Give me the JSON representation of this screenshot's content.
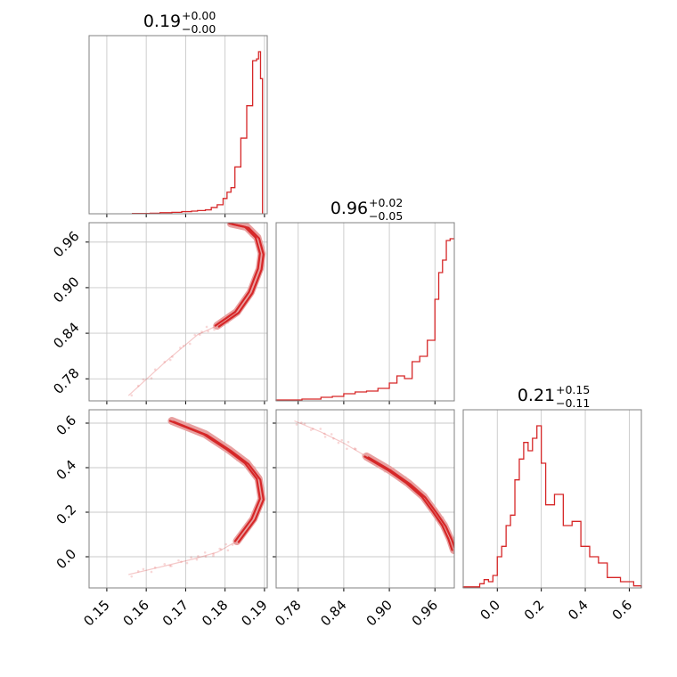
{
  "colors": {
    "accent": "#d62728",
    "grid": "#c8c8c8",
    "frame": "#808080"
  },
  "chart_data": [
    {
      "type": "histogram",
      "panel": "p1-marginal",
      "title": {
        "main": "0.19",
        "sup": "+0.00",
        "sub": "−0.00"
      },
      "xlim": [
        0.1455,
        0.1907
      ],
      "xticks": [
        0.15,
        0.16,
        0.17,
        0.18,
        0.19
      ],
      "bins": [
        [
          0.1565,
          0.002
        ],
        [
          0.161,
          0.003
        ],
        [
          0.1635,
          0.006
        ],
        [
          0.1665,
          0.008
        ],
        [
          0.169,
          0.012
        ],
        [
          0.1715,
          0.015
        ],
        [
          0.173,
          0.018
        ],
        [
          0.175,
          0.022
        ],
        [
          0.1765,
          0.035
        ],
        [
          0.178,
          0.05
        ],
        [
          0.1795,
          0.085
        ],
        [
          0.1805,
          0.12
        ],
        [
          0.1815,
          0.145
        ],
        [
          0.1825,
          0.26
        ],
        [
          0.184,
          0.42
        ],
        [
          0.1855,
          0.6
        ],
        [
          0.187,
          0.85
        ],
        [
          0.188,
          0.86
        ],
        [
          0.1885,
          0.9
        ],
        [
          0.189,
          0.75
        ],
        [
          0.1895,
          0.0
        ]
      ]
    },
    {
      "type": "histogram",
      "panel": "p2-marginal",
      "title": {
        "main": "0.96",
        "sup": "+0.02",
        "sub": "−0.05"
      },
      "xlim": [
        0.751,
        0.9855
      ],
      "xticks": [
        0.78,
        0.84,
        0.9,
        0.96
      ],
      "bins": [
        [
          0.751,
          0.005
        ],
        [
          0.785,
          0.01
        ],
        [
          0.81,
          0.02
        ],
        [
          0.825,
          0.025
        ],
        [
          0.84,
          0.04
        ],
        [
          0.855,
          0.05
        ],
        [
          0.87,
          0.055
        ],
        [
          0.885,
          0.07
        ],
        [
          0.9,
          0.1
        ],
        [
          0.91,
          0.14
        ],
        [
          0.92,
          0.125
        ],
        [
          0.93,
          0.22
        ],
        [
          0.94,
          0.25
        ],
        [
          0.95,
          0.34
        ],
        [
          0.96,
          0.57
        ],
        [
          0.965,
          0.72
        ],
        [
          0.97,
          0.79
        ],
        [
          0.975,
          0.9
        ],
        [
          0.98,
          0.91
        ],
        [
          0.9855,
          0.91
        ]
      ]
    },
    {
      "type": "histogram",
      "panel": "p3-marginal",
      "title": {
        "main": "0.21",
        "sup": "+0.15",
        "sub": "−0.11"
      },
      "xlim": [
        -0.155,
        0.655
      ],
      "xticks": [
        0.0,
        0.2,
        0.4,
        0.6
      ],
      "bins": [
        [
          -0.155,
          0.005
        ],
        [
          -0.08,
          0.02
        ],
        [
          -0.06,
          0.04
        ],
        [
          -0.04,
          0.03
        ],
        [
          -0.02,
          0.06
        ],
        [
          0.0,
          0.15
        ],
        [
          0.02,
          0.2
        ],
        [
          0.04,
          0.3
        ],
        [
          0.06,
          0.35
        ],
        [
          0.08,
          0.52
        ],
        [
          0.1,
          0.62
        ],
        [
          0.12,
          0.7
        ],
        [
          0.14,
          0.66
        ],
        [
          0.16,
          0.72
        ],
        [
          0.18,
          0.78
        ],
        [
          0.2,
          0.6
        ],
        [
          0.22,
          0.4
        ],
        [
          0.26,
          0.45
        ],
        [
          0.3,
          0.3
        ],
        [
          0.34,
          0.32
        ],
        [
          0.38,
          0.2
        ],
        [
          0.42,
          0.15
        ],
        [
          0.46,
          0.12
        ],
        [
          0.5,
          0.05
        ],
        [
          0.56,
          0.03
        ],
        [
          0.62,
          0.01
        ],
        [
          0.655,
          0.0
        ]
      ]
    },
    {
      "type": "scatter",
      "panel": "p1-vs-p2",
      "xlim": [
        0.1455,
        0.1907
      ],
      "ylim": [
        0.751,
        0.9855
      ],
      "xticks": [
        0.15,
        0.16,
        0.17,
        0.18,
        0.19
      ],
      "yticks": [
        0.78,
        0.84,
        0.9,
        0.96
      ],
      "curve": [
        [
          0.1555,
          0.758
        ],
        [
          0.165,
          0.803
        ],
        [
          0.173,
          0.838
        ],
        [
          0.178,
          0.85
        ],
        [
          0.183,
          0.868
        ],
        [
          0.1865,
          0.894
        ],
        [
          0.1888,
          0.925
        ],
        [
          0.1893,
          0.945
        ],
        [
          0.1882,
          0.966
        ],
        [
          0.1855,
          0.98
        ],
        [
          0.1815,
          0.9845
        ]
      ]
    },
    {
      "type": "scatter",
      "panel": "p1-vs-p3",
      "xlim": [
        0.1455,
        0.1907
      ],
      "ylim": [
        -0.14,
        0.66
      ],
      "xticks": [
        0.15,
        0.16,
        0.17,
        0.18,
        0.19
      ],
      "yticks": [
        0.0,
        0.2,
        0.4,
        0.6
      ],
      "curve": [
        [
          0.1555,
          -0.08
        ],
        [
          0.165,
          -0.04
        ],
        [
          0.172,
          -0.01
        ],
        [
          0.178,
          0.02
        ],
        [
          0.183,
          0.07
        ],
        [
          0.1872,
          0.17
        ],
        [
          0.1893,
          0.26
        ],
        [
          0.1885,
          0.35
        ],
        [
          0.1855,
          0.42
        ],
        [
          0.181,
          0.48
        ],
        [
          0.175,
          0.55
        ],
        [
          0.1665,
          0.61
        ]
      ]
    },
    {
      "type": "scatter",
      "panel": "p2-vs-p3",
      "xlim": [
        0.751,
        0.9855
      ],
      "ylim": [
        -0.14,
        0.66
      ],
      "xticks": [
        0.78,
        0.84,
        0.9,
        0.96
      ],
      "yticks": [
        0.0,
        0.2,
        0.4,
        0.6
      ],
      "curve": [
        [
          0.775,
          0.61
        ],
        [
          0.81,
          0.56
        ],
        [
          0.84,
          0.51
        ],
        [
          0.87,
          0.45
        ],
        [
          0.9,
          0.39
        ],
        [
          0.925,
          0.33
        ],
        [
          0.945,
          0.27
        ],
        [
          0.96,
          0.2
        ],
        [
          0.972,
          0.14
        ],
        [
          0.98,
          0.08
        ],
        [
          0.985,
          0.03
        ]
      ]
    }
  ]
}
